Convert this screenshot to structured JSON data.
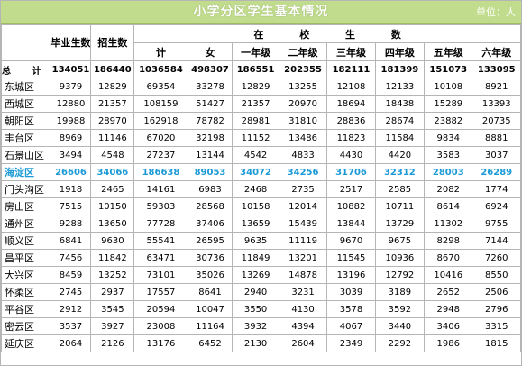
{
  "title": "小学分区学生基本情况",
  "unit": "单位：人",
  "headers": {
    "graduates": "毕业生数",
    "enrollment": "招生数",
    "in_school": "在 校 生 数",
    "sub": [
      "计",
      "女",
      "一年级",
      "二年级",
      "三年级",
      "四年级",
      "五年级",
      "六年级"
    ]
  },
  "total_label": "总 计",
  "total": [
    "134051",
    "186440",
    "1036584",
    "498307",
    "186551",
    "202355",
    "182111",
    "181399",
    "151073",
    "133095"
  ],
  "rows": [
    {
      "region": "东城区",
      "values": [
        "9379",
        "12829",
        "69354",
        "33278",
        "12829",
        "13255",
        "12108",
        "12133",
        "10108",
        "8921"
      ]
    },
    {
      "region": "西城区",
      "values": [
        "12880",
        "21357",
        "108159",
        "51427",
        "21357",
        "20970",
        "18694",
        "18438",
        "15289",
        "13393"
      ]
    },
    {
      "region": "朝阳区",
      "values": [
        "19988",
        "28970",
        "162918",
        "78782",
        "28981",
        "31810",
        "28836",
        "28674",
        "23882",
        "20735"
      ]
    },
    {
      "region": "丰台区",
      "values": [
        "8969",
        "11146",
        "67020",
        "32198",
        "11152",
        "13486",
        "11823",
        "11584",
        "9834",
        "8881"
      ]
    },
    {
      "region": "石景山区",
      "values": [
        "3494",
        "4548",
        "27237",
        "13144",
        "4542",
        "4833",
        "4430",
        "4420",
        "3583",
        "3037"
      ]
    },
    {
      "region": "海淀区",
      "values": [
        "26606",
        "34066",
        "186638",
        "89053",
        "34072",
        "34256",
        "31706",
        "32312",
        "28003",
        "26289"
      ]
    },
    {
      "region": "门头沟区",
      "values": [
        "1918",
        "2465",
        "14161",
        "6983",
        "2468",
        "2735",
        "2517",
        "2585",
        "2082",
        "1774"
      ]
    },
    {
      "region": "房山区",
      "values": [
        "7515",
        "10150",
        "59303",
        "28568",
        "10158",
        "12014",
        "10882",
        "10711",
        "8614",
        "6924"
      ]
    },
    {
      "region": "通州区",
      "values": [
        "9288",
        "13650",
        "77728",
        "37406",
        "13659",
        "15439",
        "13844",
        "13729",
        "11302",
        "9755"
      ]
    },
    {
      "region": "顺义区",
      "values": [
        "6841",
        "9630",
        "55541",
        "26595",
        "9635",
        "11119",
        "9670",
        "9675",
        "8298",
        "7144"
      ]
    },
    {
      "region": "昌平区",
      "values": [
        "7456",
        "11842",
        "63471",
        "30736",
        "11849",
        "13201",
        "11545",
        "10936",
        "8670",
        "7260"
      ]
    },
    {
      "region": "大兴区",
      "values": [
        "8459",
        "13252",
        "73101",
        "35026",
        "13269",
        "14878",
        "13196",
        "12792",
        "10416",
        "8550"
      ]
    },
    {
      "region": "怀柔区",
      "values": [
        "2745",
        "2937",
        "17557",
        "8641",
        "2940",
        "3231",
        "3039",
        "3189",
        "2652",
        "2506"
      ]
    },
    {
      "region": "平谷区",
      "values": [
        "2912",
        "3545",
        "20594",
        "10047",
        "3550",
        "4130",
        "3578",
        "3592",
        "2948",
        "2796"
      ]
    },
    {
      "region": "密云区",
      "values": [
        "3537",
        "3927",
        "23008",
        "11164",
        "3932",
        "4394",
        "4067",
        "3440",
        "3406",
        "3315"
      ]
    },
    {
      "region": "延庆区",
      "values": [
        "2064",
        "2126",
        "13176",
        "6452",
        "2130",
        "2604",
        "2349",
        "2292",
        "1986",
        "1815"
      ]
    }
  ],
  "highlight_region": "海淀区",
  "colors": {
    "title_bar": "#c0dc8c",
    "highlight_text": "#1b9ad6",
    "grid_line": "#b5b5b5"
  }
}
